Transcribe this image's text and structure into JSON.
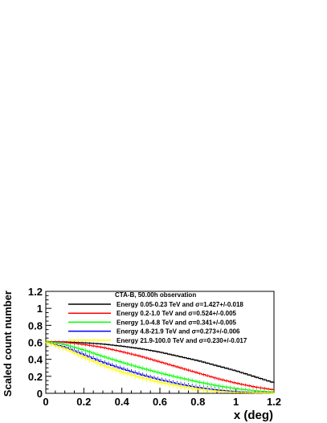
{
  "chart_data": {
    "type": "line",
    "title": "",
    "xlabel": "x (deg)",
    "ylabel": "Scaled count number",
    "xlim": [
      0,
      1.2
    ],
    "ylim": [
      0,
      1.2
    ],
    "xticks": [
      0,
      0.2,
      0.4,
      0.6,
      0.8,
      1,
      1.2
    ],
    "yticks": [
      0,
      0.2,
      0.4,
      0.6,
      0.8,
      1,
      1.2
    ],
    "xtick_labels": [
      "0",
      "0.2",
      "0.4",
      "0.6",
      "0.8",
      "1",
      "1.2"
    ],
    "ytick_labels": [
      "0",
      "0.2",
      "0.4",
      "0.6",
      "0.8",
      "1",
      "1.2"
    ],
    "grid": false,
    "legend": {
      "title": "CTA-B, 50.00h observation",
      "placement": "top"
    },
    "series": [
      {
        "name": "Energy 0.05-0.23 TeV and σ=1.427+/-0.018",
        "color": "#000000",
        "x": [
          0,
          0.1,
          0.2,
          0.3,
          0.4,
          0.5,
          0.6,
          0.7,
          0.8,
          0.9,
          1.0,
          1.1,
          1.2
        ],
        "y": [
          0.61,
          0.605,
          0.595,
          0.58,
          0.555,
          0.525,
          0.485,
          0.435,
          0.385,
          0.325,
          0.265,
          0.195,
          0.125
        ]
      },
      {
        "name": "Energy 0.2-1.0 TeV and σ=0.524+/-0.005",
        "color": "#ff0000",
        "x": [
          0,
          0.1,
          0.2,
          0.3,
          0.4,
          0.5,
          0.6,
          0.7,
          0.8,
          0.9,
          1.0,
          1.1,
          1.2
        ],
        "y": [
          0.61,
          0.6,
          0.575,
          0.54,
          0.49,
          0.435,
          0.37,
          0.305,
          0.24,
          0.175,
          0.12,
          0.075,
          0.04
        ]
      },
      {
        "name": "Energy 1.0-4.8 TeV and σ=0.341+/-0.005",
        "color": "#00ff00",
        "x": [
          0,
          0.1,
          0.2,
          0.3,
          0.4,
          0.5,
          0.6,
          0.7,
          0.8,
          0.9,
          1.0,
          1.1,
          1.2
        ],
        "y": [
          0.61,
          0.575,
          0.51,
          0.435,
          0.365,
          0.3,
          0.24,
          0.185,
          0.135,
          0.09,
          0.055,
          0.03,
          0.015
        ]
      },
      {
        "name": "Energy 4.8-21.9 TeV and σ=0.273+/-0.006",
        "color": "#0000ff",
        "x": [
          0,
          0.1,
          0.2,
          0.3,
          0.4,
          0.5,
          0.6,
          0.7,
          0.8,
          0.9,
          1.0,
          1.1,
          1.2
        ],
        "y": [
          0.6,
          0.545,
          0.455,
          0.365,
          0.29,
          0.22,
          0.16,
          0.11,
          0.07,
          0.04,
          0.02,
          0.01,
          0.005
        ]
      },
      {
        "name": "Energy 21.9-100.0 TeV and σ=0.230+/-0.017",
        "color": "#ffff00",
        "x": [
          0,
          0.1,
          0.2,
          0.3,
          0.4,
          0.5,
          0.6,
          0.7,
          0.8,
          0.9,
          1.0,
          1.1,
          1.2
        ],
        "y": [
          0.6,
          0.53,
          0.425,
          0.33,
          0.25,
          0.185,
          0.13,
          0.085,
          0.05,
          0.025,
          0.012,
          0.005,
          0.002
        ]
      }
    ]
  }
}
